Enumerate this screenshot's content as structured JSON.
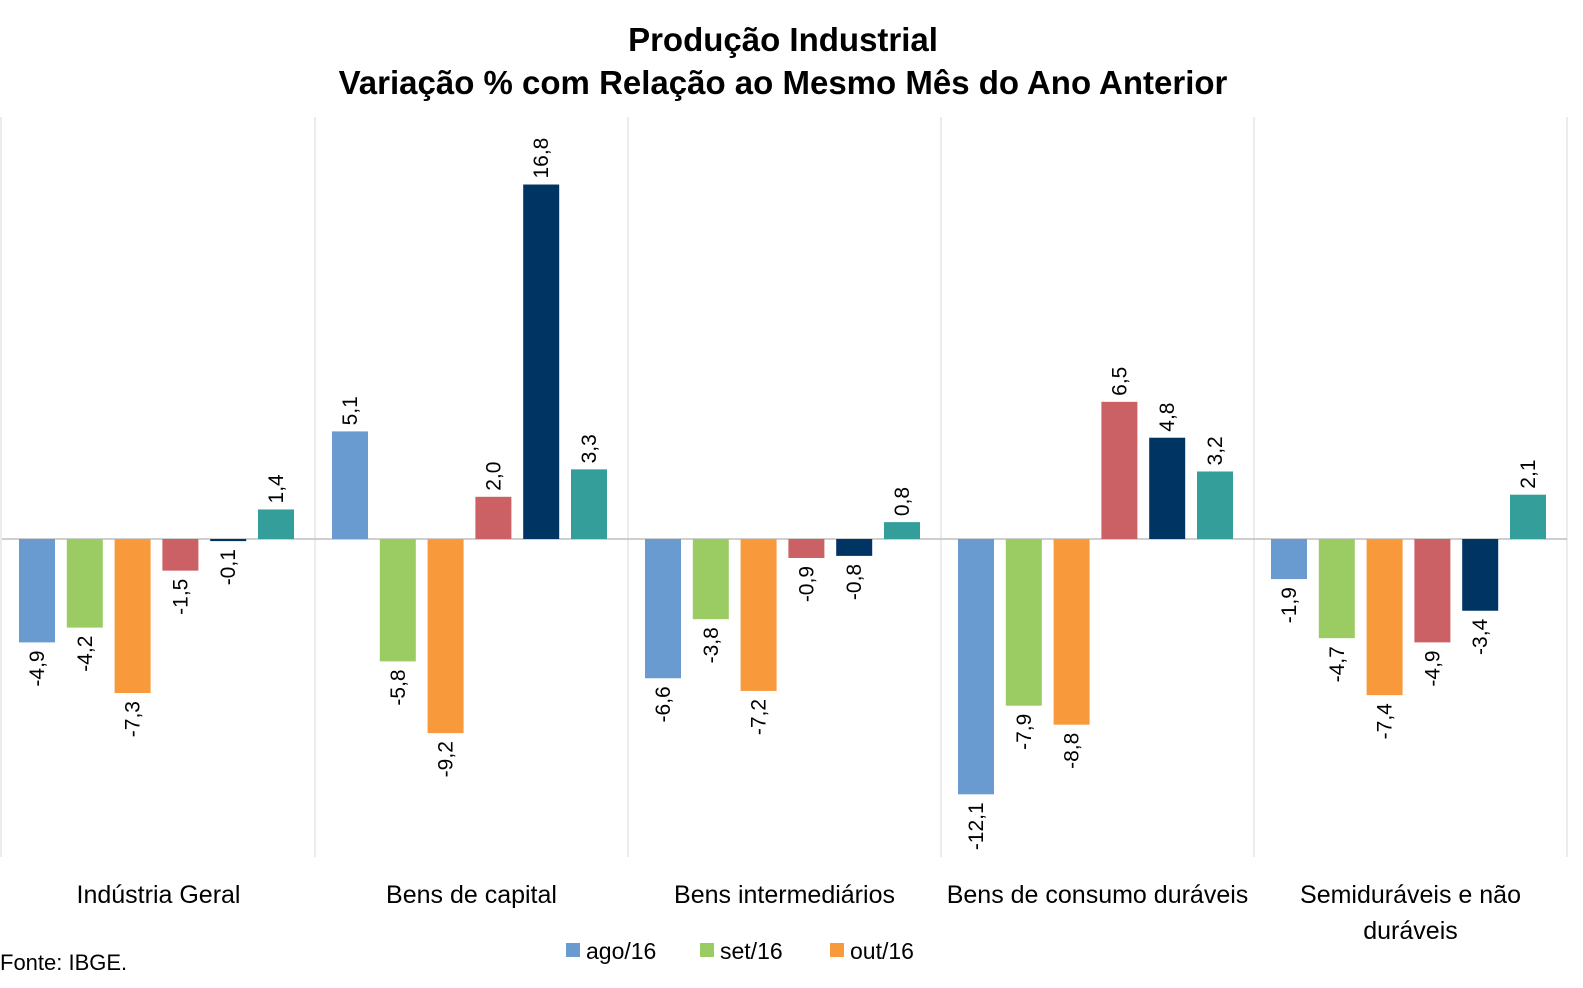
{
  "chart_data": {
    "type": "bar",
    "title": [
      "Produção Industrial",
      "Variação % com Relação ao Mesmo Mês do Ano Anterior"
    ],
    "categories": [
      [
        "Indústria Geral"
      ],
      [
        "Bens de capital"
      ],
      [
        "Bens intermediários"
      ],
      [
        "Bens de consumo duráveis"
      ],
      [
        "Semiduráveis e não",
        "duráveis"
      ]
    ],
    "series": [
      {
        "name": "ago/16",
        "color": "#6A9BD0",
        "values": [
          -4.9,
          5.1,
          -6.6,
          -12.1,
          -1.9
        ],
        "labels": [
          "-4,9",
          "5,1",
          "-6,6",
          "-12,1",
          "-1,9"
        ]
      },
      {
        "name": "set/16",
        "color": "#9BCB63",
        "values": [
          -4.2,
          -5.8,
          -3.8,
          -7.9,
          -4.7
        ],
        "labels": [
          "-4,2",
          "-5,8",
          "-3,8",
          "-7,9",
          "-4,7"
        ]
      },
      {
        "name": "out/16",
        "color": "#F89A3C",
        "values": [
          -7.3,
          -9.2,
          -7.2,
          -8.8,
          -7.4
        ],
        "labels": [
          "-7,3",
          "-9,2",
          "-7,2",
          "-8,8",
          "-7,4"
        ]
      },
      {
        "name": "",
        "color": "#CC6165",
        "values": [
          -1.5,
          2.0,
          -0.9,
          6.5,
          -4.9
        ],
        "labels": [
          "-1,5",
          "2,0",
          "-0,9",
          "6,5",
          "-4,9"
        ]
      },
      {
        "name": "",
        "color": "#003463",
        "values": [
          -0.1,
          16.8,
          -0.8,
          4.8,
          -3.4
        ],
        "labels": [
          "-0,1",
          "16,8",
          "-0,8",
          "4,8",
          "-3,4"
        ]
      },
      {
        "name": "",
        "color": "#349E9A",
        "values": [
          1.4,
          3.3,
          0.8,
          3.2,
          2.1
        ],
        "labels": [
          "1,4",
          "3,3",
          "0,8",
          "3,2",
          "2,1"
        ]
      }
    ],
    "legend_entries": [
      "ago/16",
      "set/16",
      "out/16"
    ],
    "legend_position": "bottom",
    "ylim": [
      -15,
      19
    ],
    "grid": false,
    "source": "Fonte: IBGE."
  }
}
